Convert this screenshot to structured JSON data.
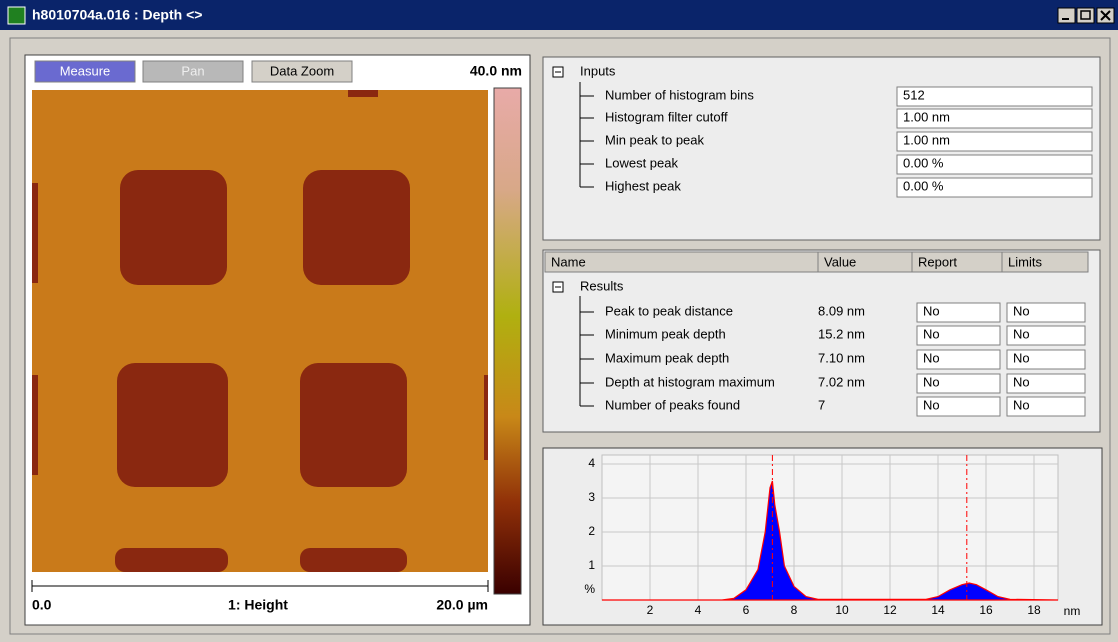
{
  "window": {
    "title": "h8010704a.016 : Depth <>"
  },
  "image_panel": {
    "buttons": [
      "Measure",
      "Pan",
      "Data Zoom"
    ],
    "scale_max": "40.0 nm",
    "scale_min": "0.0",
    "channel": "1: Height",
    "scale_size": "20.0 µm"
  },
  "inputs": {
    "heading": "Inputs",
    "rows": [
      [
        "Number of histogram bins",
        "512"
      ],
      [
        "Histogram filter cutoff",
        "1.00 nm"
      ],
      [
        "Min peak to peak",
        "1.00 nm"
      ],
      [
        "Lowest peak",
        "0.00 %"
      ],
      [
        "Highest peak",
        "0.00 %"
      ]
    ]
  },
  "results": {
    "columns": [
      "Name",
      "Value",
      "Report",
      "Limits"
    ],
    "heading": "Results",
    "rows": [
      [
        "Peak to peak distance",
        "8.09 nm",
        "No",
        "No"
      ],
      [
        "Minimum peak depth",
        "15.2 nm",
        "No",
        "No"
      ],
      [
        "Maximum peak depth",
        "7.10 nm",
        "No",
        "No"
      ],
      [
        "Depth at histogram maximum",
        "7.02 nm",
        "No",
        "No"
      ],
      [
        "Number of peaks found",
        "7",
        "No",
        "No"
      ]
    ]
  },
  "chart_data": {
    "type": "area",
    "x": [
      0,
      5,
      5.5,
      6,
      6.5,
      6.8,
      7.0,
      7.1,
      7.2,
      7.4,
      7.6,
      8,
      8.5,
      9,
      13.5,
      14,
      14.5,
      15,
      15.3,
      15.6,
      16,
      16.5,
      17,
      19
    ],
    "values": [
      0,
      0,
      0.05,
      0.3,
      0.9,
      2.0,
      3.3,
      3.5,
      2.8,
      2.0,
      1.0,
      0.4,
      0.1,
      0.02,
      0.02,
      0.1,
      0.3,
      0.45,
      0.5,
      0.45,
      0.3,
      0.1,
      0.02,
      0
    ],
    "xlim": [
      0,
      19
    ],
    "ylim": [
      0,
      4
    ],
    "xticks": [
      2,
      4,
      6,
      8,
      10,
      12,
      14,
      16,
      18
    ],
    "yticks": [
      1,
      2,
      3,
      4
    ],
    "x_label": "nm",
    "y_label": "%",
    "peak_lines": [
      7.1,
      15.2
    ],
    "color": "#0000ff",
    "line_color": "#ff0000",
    "grid": true
  }
}
